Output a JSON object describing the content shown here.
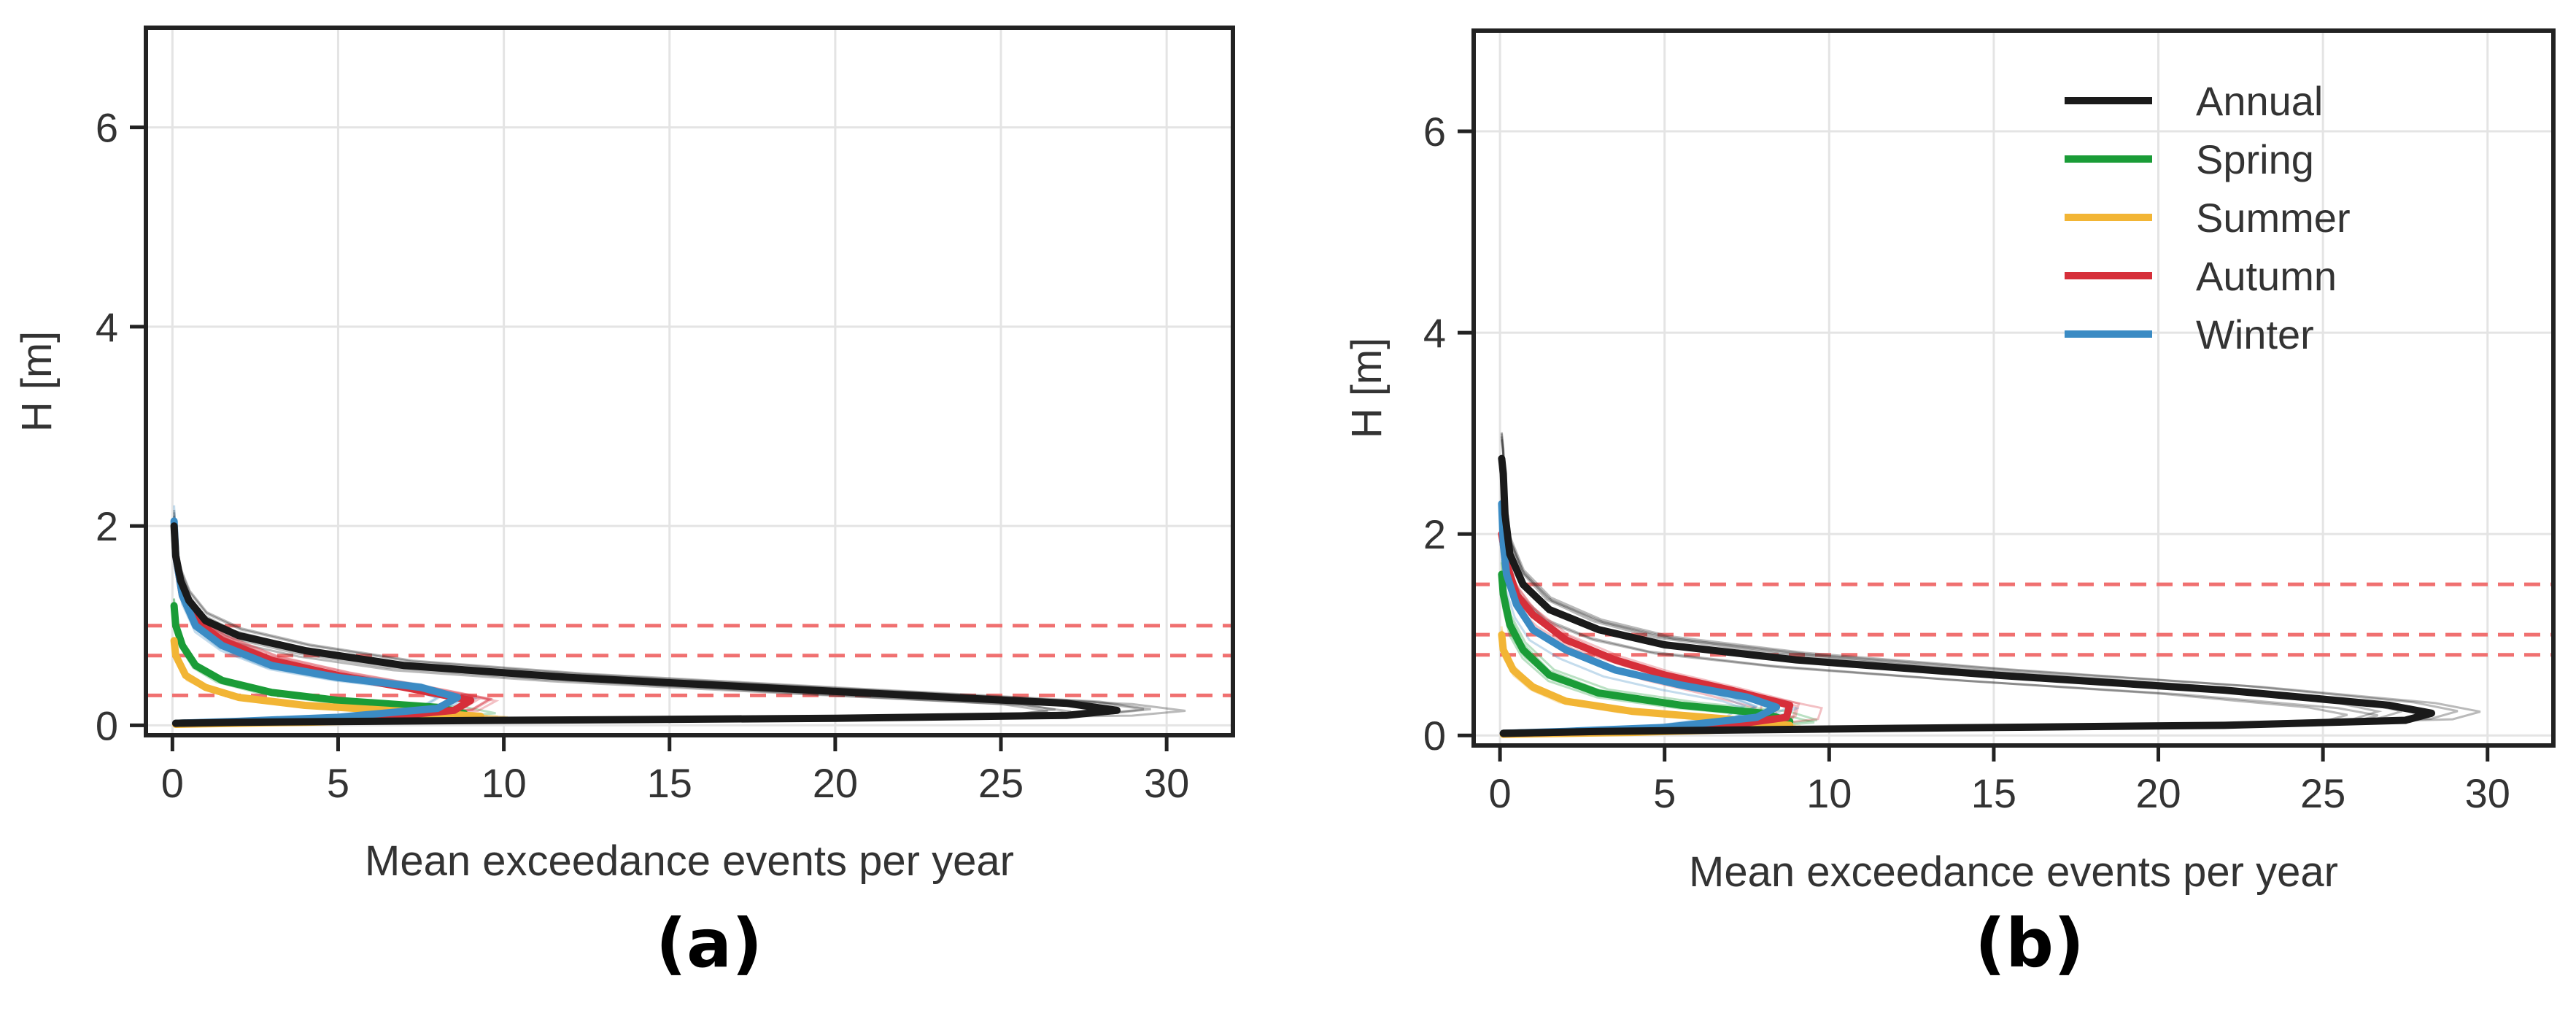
{
  "chart_data": [
    {
      "type": "line",
      "panel_label": "(a)",
      "xlabel": "Mean exceedance events per year",
      "ylabel": "H [m]",
      "xlim": [
        -0.8,
        32
      ],
      "ylim": [
        -0.1,
        7.0
      ],
      "xticks": [
        0,
        5,
        10,
        15,
        20,
        25,
        30
      ],
      "yticks": [
        0,
        2,
        4,
        6
      ],
      "grid": true,
      "legend": false,
      "thresholds": [
        0.3,
        0.7,
        1.0
      ],
      "series": [
        {
          "name": "Annual",
          "color": "#1a1a1a",
          "points": [
            [
              0.1,
              0.02
            ],
            [
              2,
              0.03
            ],
            [
              10,
              0.05
            ],
            [
              20,
              0.07
            ],
            [
              27,
              0.1
            ],
            [
              28.5,
              0.15
            ],
            [
              27,
              0.22
            ],
            [
              20,
              0.34
            ],
            [
              12,
              0.48
            ],
            [
              7,
              0.6
            ],
            [
              4,
              0.75
            ],
            [
              2,
              0.9
            ],
            [
              1,
              1.05
            ],
            [
              0.5,
              1.25
            ],
            [
              0.25,
              1.45
            ],
            [
              0.1,
              1.7
            ],
            [
              0.05,
              2.0
            ]
          ]
        },
        {
          "name": "Spring",
          "color": "#1a9c37",
          "points": [
            [
              0.1,
              0.02
            ],
            [
              3,
              0.04
            ],
            [
              7,
              0.07
            ],
            [
              8.8,
              0.12
            ],
            [
              8,
              0.18
            ],
            [
              5,
              0.25
            ],
            [
              3,
              0.33
            ],
            [
              1.5,
              0.45
            ],
            [
              0.7,
              0.6
            ],
            [
              0.3,
              0.8
            ],
            [
              0.1,
              1.0
            ],
            [
              0.05,
              1.2
            ]
          ]
        },
        {
          "name": "Summer",
          "color": "#f2b535",
          "points": [
            [
              0.1,
              0.01
            ],
            [
              4,
              0.03
            ],
            [
              8,
              0.06
            ],
            [
              9.3,
              0.09
            ],
            [
              7,
              0.14
            ],
            [
              4,
              0.2
            ],
            [
              2,
              0.28
            ],
            [
              1,
              0.38
            ],
            [
              0.4,
              0.5
            ],
            [
              0.1,
              0.7
            ],
            [
              0.05,
              0.85
            ]
          ]
        },
        {
          "name": "Autumn",
          "color": "#d62f3a",
          "points": [
            [
              0.1,
              0.02
            ],
            [
              3,
              0.04
            ],
            [
              6,
              0.07
            ],
            [
              8.5,
              0.15
            ],
            [
              9,
              0.25
            ],
            [
              7,
              0.38
            ],
            [
              5,
              0.5
            ],
            [
              3,
              0.65
            ],
            [
              1.5,
              0.85
            ],
            [
              0.7,
              1.05
            ],
            [
              0.3,
              1.3
            ],
            [
              0.1,
              1.7
            ]
          ]
        },
        {
          "name": "Winter",
          "color": "#3b8bc4",
          "points": [
            [
              0.1,
              0.02
            ],
            [
              2,
              0.04
            ],
            [
              5,
              0.08
            ],
            [
              8,
              0.17
            ],
            [
              8.6,
              0.28
            ],
            [
              7.5,
              0.38
            ],
            [
              5,
              0.48
            ],
            [
              3,
              0.6
            ],
            [
              1.5,
              0.8
            ],
            [
              0.7,
              1.0
            ],
            [
              0.3,
              1.3
            ],
            [
              0.1,
              1.7
            ],
            [
              0.05,
              2.05
            ]
          ]
        }
      ]
    },
    {
      "type": "line",
      "panel_label": "(b)",
      "xlabel": "Mean exceedance events per year",
      "ylabel": "H [m]",
      "xlim": [
        -0.8,
        32
      ],
      "ylim": [
        -0.1,
        7.0
      ],
      "xticks": [
        0,
        5,
        10,
        15,
        20,
        25,
        30
      ],
      "yticks": [
        0,
        2,
        4,
        6
      ],
      "grid": true,
      "legend": "top-right",
      "thresholds": [
        0.8,
        1.0,
        1.5
      ],
      "series": [
        {
          "name": "Annual",
          "color": "#1a1a1a",
          "points": [
            [
              0.1,
              0.02
            ],
            [
              3,
              0.04
            ],
            [
              12,
              0.07
            ],
            [
              22,
              0.1
            ],
            [
              27.5,
              0.15
            ],
            [
              28.3,
              0.22
            ],
            [
              27,
              0.3
            ],
            [
              22,
              0.45
            ],
            [
              15,
              0.6
            ],
            [
              9,
              0.75
            ],
            [
              5,
              0.9
            ],
            [
              3,
              1.05
            ],
            [
              1.5,
              1.25
            ],
            [
              0.7,
              1.5
            ],
            [
              0.3,
              1.8
            ],
            [
              0.15,
              2.2
            ],
            [
              0.1,
              2.6
            ],
            [
              0.05,
              2.75
            ]
          ]
        },
        {
          "name": "Spring",
          "color": "#1a9c37",
          "points": [
            [
              0.1,
              0.02
            ],
            [
              3,
              0.04
            ],
            [
              7,
              0.08
            ],
            [
              8.8,
              0.14
            ],
            [
              8,
              0.22
            ],
            [
              5.5,
              0.3
            ],
            [
              3,
              0.42
            ],
            [
              1.5,
              0.6
            ],
            [
              0.7,
              0.85
            ],
            [
              0.3,
              1.1
            ],
            [
              0.1,
              1.4
            ],
            [
              0.05,
              1.6
            ]
          ]
        },
        {
          "name": "Summer",
          "color": "#f2b535",
          "points": [
            [
              0.1,
              0.01
            ],
            [
              4,
              0.03
            ],
            [
              7.5,
              0.06
            ],
            [
              8.8,
              0.1
            ],
            [
              7,
              0.16
            ],
            [
              4,
              0.24
            ],
            [
              2,
              0.34
            ],
            [
              1,
              0.48
            ],
            [
              0.4,
              0.65
            ],
            [
              0.1,
              0.85
            ],
            [
              0.05,
              1.0
            ]
          ]
        },
        {
          "name": "Autumn",
          "color": "#d62f3a",
          "points": [
            [
              0.1,
              0.02
            ],
            [
              3,
              0.04
            ],
            [
              6.5,
              0.08
            ],
            [
              8.7,
              0.18
            ],
            [
              8.8,
              0.3
            ],
            [
              7,
              0.45
            ],
            [
              5,
              0.6
            ],
            [
              3.5,
              0.75
            ],
            [
              2,
              0.95
            ],
            [
              1,
              1.2
            ],
            [
              0.5,
              1.4
            ],
            [
              0.2,
              1.7
            ],
            [
              0.05,
              2.0
            ]
          ]
        },
        {
          "name": "Winter",
          "color": "#3b8bc4",
          "points": [
            [
              0.1,
              0.02
            ],
            [
              2,
              0.04
            ],
            [
              5,
              0.08
            ],
            [
              7.8,
              0.18
            ],
            [
              8.4,
              0.28
            ],
            [
              7.5,
              0.38
            ],
            [
              5.5,
              0.5
            ],
            [
              3.5,
              0.65
            ],
            [
              2,
              0.85
            ],
            [
              1,
              1.05
            ],
            [
              0.5,
              1.3
            ],
            [
              0.2,
              1.6
            ],
            [
              0.1,
              1.9
            ],
            [
              0.05,
              2.3
            ]
          ]
        }
      ]
    }
  ]
}
